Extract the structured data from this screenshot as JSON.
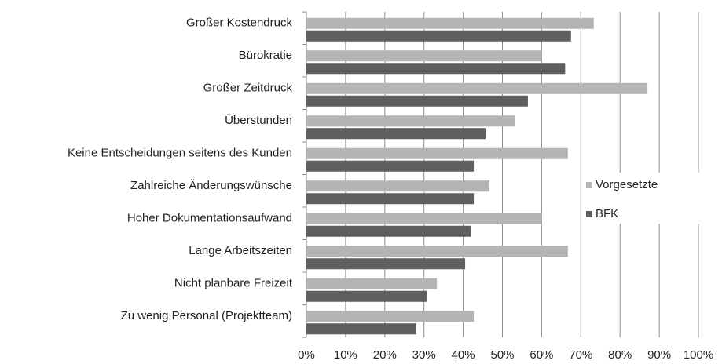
{
  "chart_data": {
    "type": "barh",
    "categories": [
      "Großer Kostendruck",
      "Bürokratie",
      "Großer Zeitdruck",
      "Überstunden",
      "Keine Entscheidungen seitens des Kunden",
      "Zahlreiche Änderungswünsche",
      "Hoher Dokumentationsaufwand",
      "Lange Arbeitszeiten",
      "Nicht planbare Freizeit",
      "Zu wenig Personal (Projektteam)"
    ],
    "series": [
      {
        "name": "Vorgesetzte",
        "color": "#b4b4b4",
        "values": [
          73.3,
          60,
          87,
          53.3,
          66.7,
          46.7,
          60,
          66.7,
          33.3,
          42.7
        ]
      },
      {
        "name": "BFK",
        "color": "#5f5f5f",
        "values": [
          67.5,
          66,
          56.5,
          45.7,
          42.7,
          42.7,
          42,
          40.5,
          30.7,
          28
        ]
      }
    ],
    "xlim": [
      0,
      100
    ],
    "xticks": [
      {
        "value": 0,
        "label": "0%"
      },
      {
        "value": 10,
        "label": "10%"
      },
      {
        "value": 20,
        "label": "20%"
      },
      {
        "value": 30,
        "label": "30%"
      },
      {
        "value": 40,
        "label": "40%"
      },
      {
        "value": 50,
        "label": "50%"
      },
      {
        "value": 60,
        "label": "60%"
      },
      {
        "value": 70,
        "label": "70%"
      },
      {
        "value": 80,
        "label": "80%"
      },
      {
        "value": 90,
        "label": "90%"
      },
      {
        "value": 100,
        "label": "100%"
      }
    ],
    "grid": true,
    "legend": "right"
  }
}
